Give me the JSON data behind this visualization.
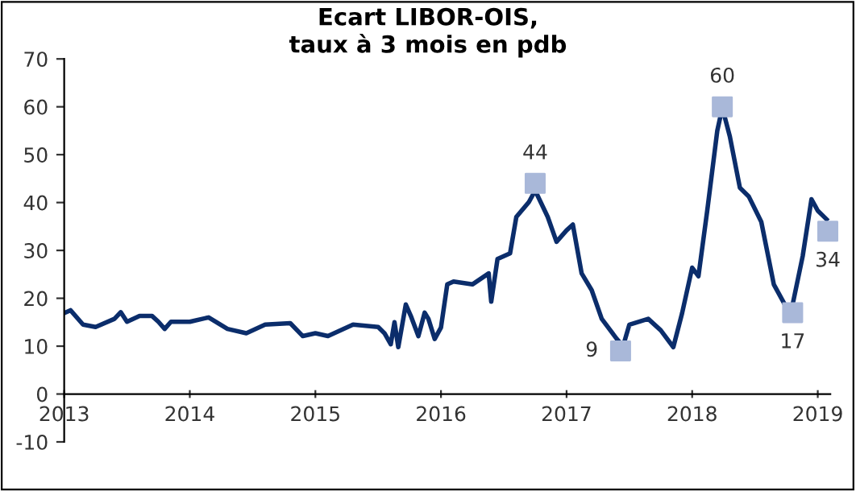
{
  "chart_data": {
    "type": "line",
    "title": "Ecart LIBOR-OIS,\ntaux à 3 mois en pdb",
    "xlim": [
      2013.0,
      2019.1
    ],
    "xticks": [
      2013,
      2014,
      2015,
      2016,
      2017,
      2018,
      2019
    ],
    "ylim": [
      -10,
      70
    ],
    "yticks": [
      -10,
      0,
      10,
      20,
      30,
      40,
      50,
      60,
      70
    ],
    "grid": false,
    "legend": false,
    "series": [
      {
        "color": "#0b2d6b",
        "marker": "none",
        "x": [
          2013.0,
          2013.05,
          2013.15,
          2013.25,
          2013.4,
          2013.45,
          2013.5,
          2013.6,
          2013.7,
          2013.75,
          2013.8,
          2013.85,
          2014.0,
          2014.15,
          2014.3,
          2014.45,
          2014.6,
          2014.8,
          2014.9,
          2015.0,
          2015.1,
          2015.3,
          2015.5,
          2015.55,
          2015.6,
          2015.63,
          2015.66,
          2015.72,
          2015.76,
          2015.82,
          2015.87,
          2015.9,
          2015.95,
          2016.0,
          2016.05,
          2016.1,
          2016.25,
          2016.38,
          2016.4,
          2016.45,
          2016.55,
          2016.6,
          2016.7,
          2016.75,
          2016.85,
          2016.92,
          2017.0,
          2017.05,
          2017.12,
          2017.2,
          2017.28,
          2017.4,
          2017.45,
          2017.5,
          2017.65,
          2017.75,
          2017.85,
          2017.92,
          2018.0,
          2018.05,
          2018.12,
          2018.2,
          2018.24,
          2018.3,
          2018.38,
          2018.45,
          2018.55,
          2018.65,
          2018.75,
          2018.8,
          2018.88,
          2018.95,
          2019.0,
          2019.07
        ],
        "values": [
          16.9,
          17.5,
          14.5,
          14,
          15.7,
          17.1,
          15.1,
          16.3,
          16.3,
          15.1,
          13.6,
          15.1,
          15.1,
          16,
          13.6,
          12.7,
          14.5,
          14.8,
          12.1,
          12.7,
          12.1,
          14.5,
          14,
          12.7,
          10.4,
          15,
          9.8,
          18.7,
          16.3,
          12.1,
          17,
          15.7,
          11.5,
          13.9,
          22.9,
          23.5,
          22.9,
          25.2,
          19.3,
          28.2,
          29.4,
          37,
          40.1,
          42.5,
          37,
          31.8,
          34.2,
          35.4,
          25.2,
          21.7,
          15.7,
          11.5,
          10,
          14.5,
          15.7,
          13.3,
          9.8,
          16.9,
          26.4,
          24.6,
          38.3,
          55,
          59.8,
          53.8,
          43.1,
          41.3,
          36,
          22.9,
          18.1,
          18.7,
          28.8,
          40.7,
          38.3,
          36.5
        ]
      },
      {
        "type": "scatter",
        "color": "#a9b8d9",
        "marker": "square",
        "x": [
          2016.75,
          2017.43,
          2018.24,
          2018.8,
          2019.08
        ],
        "values": [
          44,
          9,
          60,
          17,
          34
        ],
        "value_labels": [
          "44",
          "9",
          "60",
          "17",
          "34"
        ]
      }
    ]
  }
}
